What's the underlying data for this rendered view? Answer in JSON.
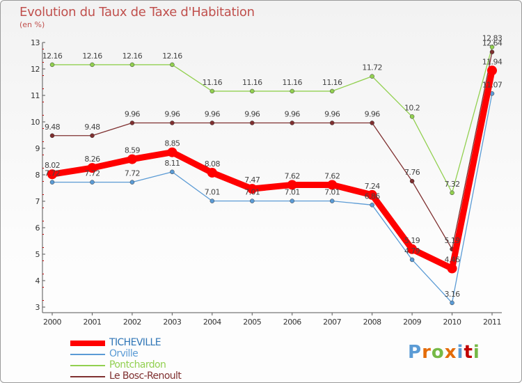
{
  "header": {
    "title": "Evolution du Taux de Taxe d'Habitation",
    "unit": "(en %)"
  },
  "logo": {
    "text": "Proxiti",
    "colors": [
      "#5b9bd5",
      "#e46c0a",
      "#76b947",
      "#e46c0a",
      "#5b9bd5",
      "#c00000",
      "#76b947"
    ]
  },
  "chart_data": {
    "type": "line",
    "x": [
      "2000",
      "2001",
      "2002",
      "2003",
      "2004",
      "2005",
      "2006",
      "2007",
      "2008",
      "2009",
      "2010",
      "2011"
    ],
    "ylim": [
      3,
      13
    ],
    "yticks": [
      3,
      4,
      5,
      6,
      7,
      8,
      9,
      10,
      11,
      12,
      13
    ],
    "grid": false,
    "legend_position": "bottom-left",
    "series": [
      {
        "name": "TICHEVILLE",
        "color": "#ff0000",
        "thick": true,
        "values": [
          8.02,
          8.26,
          8.59,
          8.85,
          8.08,
          7.47,
          7.62,
          7.62,
          7.24,
          5.19,
          4.46,
          11.94
        ],
        "labels": [
          "8.02",
          "8.26",
          "8.59",
          "8.85",
          "8.08",
          "7.47",
          "7.62",
          "7.62",
          "7.24",
          "5.19",
          "4.46",
          "11.94"
        ]
      },
      {
        "name": "Orville",
        "color": "#5b9bd5",
        "thick": false,
        "values": [
          7.72,
          7.72,
          7.72,
          8.11,
          7.01,
          7.01,
          7.01,
          7.01,
          6.86,
          4.79,
          3.16,
          11.07
        ],
        "labels": [
          "7.72",
          "7.72",
          "7.72",
          "8.11",
          "7.01",
          "7.01",
          "7.01",
          "7.01",
          "6.86",
          "4.79",
          "3.16",
          "11.07"
        ]
      },
      {
        "name": "Pontchardon",
        "color": "#92d050",
        "thick": false,
        "values": [
          12.16,
          12.16,
          12.16,
          12.16,
          11.16,
          11.16,
          11.16,
          11.16,
          11.72,
          10.2,
          7.32,
          12.83
        ],
        "labels": [
          "12.16",
          "12.16",
          "12.16",
          "12.16",
          "11.16",
          "11.16",
          "11.16",
          "11.16",
          "11.72",
          "10.2",
          "7.32",
          "12.83"
        ]
      },
      {
        "name": "Le Bosc-Renoult",
        "color": "#7f3030",
        "thick": false,
        "values": [
          9.48,
          9.48,
          9.96,
          9.96,
          9.96,
          9.96,
          9.96,
          9.96,
          9.96,
          7.76,
          5.19,
          12.64
        ],
        "labels": [
          "9.48",
          "9.48",
          "9.96",
          "9.96",
          "9.96",
          "9.96",
          "9.96",
          "9.96",
          "9.96",
          "7.76",
          "5.19",
          "12.64"
        ]
      }
    ]
  }
}
